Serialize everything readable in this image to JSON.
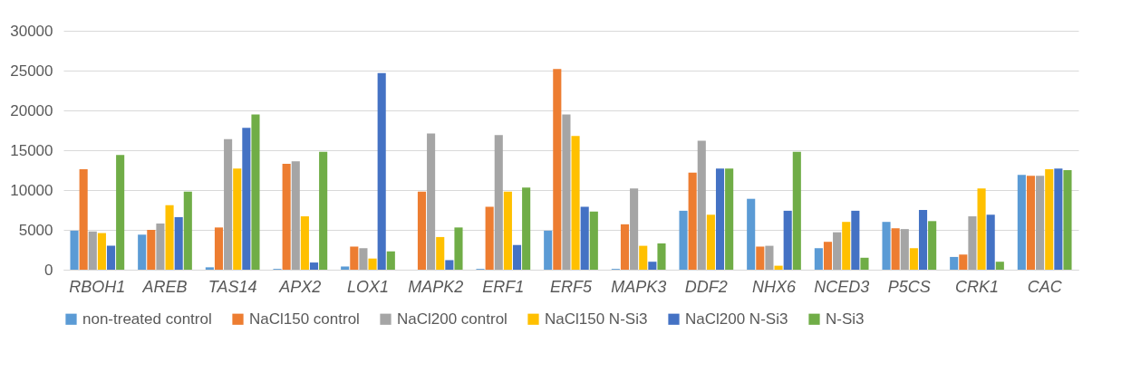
{
  "chart_data": {
    "type": "bar",
    "categories": [
      "RBOH1",
      "AREB",
      "TAS14",
      "APX2",
      "LOX1",
      "MAPK2",
      "ERF1",
      "ERF5",
      "MAPK3",
      "DDF2",
      "NHX6",
      "NCED3",
      "P5CS",
      "CRK1",
      "CAC"
    ],
    "series": [
      {
        "name": "non-treated control",
        "color": "#5b9bd5",
        "values": [
          4900,
          4400,
          300,
          100,
          400,
          0,
          100,
          4900,
          100,
          7400,
          8900,
          2700,
          6000,
          1600,
          11900
        ]
      },
      {
        "name": "NaCl150 control",
        "color": "#ed7d31",
        "values": [
          12600,
          5000,
          5300,
          13300,
          2900,
          9800,
          7900,
          25200,
          5700,
          12200,
          2900,
          3500,
          5200,
          1900,
          11800
        ]
      },
      {
        "name": "NaCl200 control",
        "color": "#a5a5a5",
        "values": [
          4800,
          5800,
          16400,
          13600,
          2700,
          17100,
          16900,
          19500,
          10200,
          16200,
          3000,
          4700,
          5100,
          6700,
          11800
        ]
      },
      {
        "name": "NaCl150 N-Si3",
        "color": "#ffc000",
        "values": [
          4600,
          8100,
          12700,
          6700,
          1400,
          4100,
          9800,
          16800,
          3000,
          6900,
          500,
          6000,
          2700,
          10200,
          12600
        ]
      },
      {
        "name": "NaCl200 N-Si3",
        "color": "#4472c4",
        "values": [
          3000,
          6600,
          17800,
          900,
          24700,
          1200,
          3100,
          7900,
          1000,
          12700,
          7400,
          7400,
          7500,
          6900,
          12700
        ]
      },
      {
        "name": "N-Si3",
        "color": "#70ad47",
        "values": [
          14400,
          9800,
          19500,
          14800,
          2300,
          5300,
          10300,
          7300,
          3300,
          12700,
          14800,
          1500,
          6100,
          1000,
          12500
        ]
      }
    ],
    "ylim": [
      0,
      30000
    ],
    "yticks": [
      0,
      5000,
      10000,
      15000,
      20000,
      25000,
      30000
    ],
    "grid": "y",
    "legend": "bottom"
  }
}
